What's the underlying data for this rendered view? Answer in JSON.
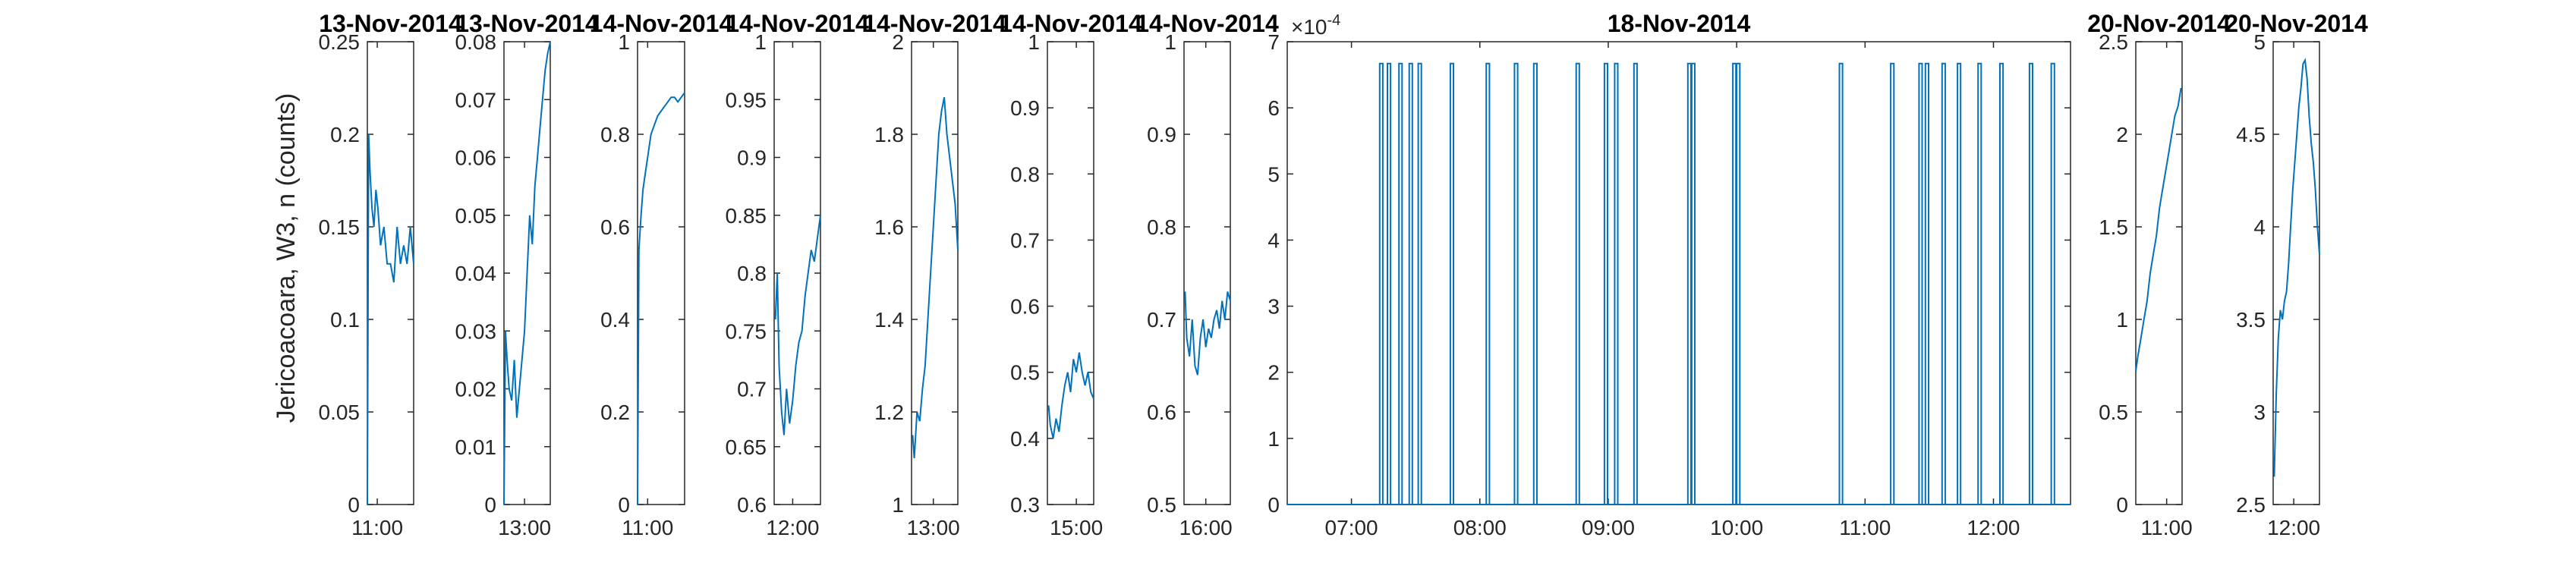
{
  "figure": {
    "ylabel": "Jericoacoara, W3, n (counts)",
    "line_color": "#0072BD",
    "axis_color": "#262626"
  },
  "chart_data": [
    {
      "type": "line",
      "title": "13-Nov-2014",
      "ylim": [
        0,
        0.25
      ],
      "yticks": [
        "0",
        "0.05",
        "0.1",
        "0.15",
        "0.2",
        "0.25"
      ],
      "xticks": [
        "11:00"
      ],
      "xlim_hours": [
        10.85,
        11.55
      ],
      "series": [
        {
          "x": [
            10.85,
            10.87,
            10.89,
            10.92,
            10.95,
            10.98,
            11.01,
            11.05,
            11.1,
            11.15,
            11.2,
            11.25,
            11.3,
            11.35,
            11.4,
            11.45,
            11.5,
            11.55
          ],
          "y": [
            0.0,
            0.2,
            0.18,
            0.16,
            0.15,
            0.17,
            0.16,
            0.14,
            0.15,
            0.13,
            0.13,
            0.12,
            0.15,
            0.13,
            0.14,
            0.13,
            0.15,
            0.13
          ]
        }
      ]
    },
    {
      "type": "line",
      "title": "13-Nov-2014",
      "ylim": [
        0,
        0.08
      ],
      "yticks": [
        "0",
        "0.01",
        "0.02",
        "0.03",
        "0.04",
        "0.05",
        "0.06",
        "0.07",
        "0.08"
      ],
      "xticks": [
        "13:00"
      ],
      "xlim_hours": [
        12.6,
        13.5
      ],
      "series": [
        {
          "x": [
            12.6,
            12.63,
            12.66,
            12.7,
            12.75,
            12.8,
            12.85,
            12.9,
            12.95,
            13.0,
            13.05,
            13.1,
            13.15,
            13.2,
            13.25,
            13.3,
            13.35,
            13.4,
            13.45,
            13.5
          ],
          "y": [
            0.0,
            0.03,
            0.025,
            0.02,
            0.018,
            0.025,
            0.015,
            0.02,
            0.025,
            0.03,
            0.04,
            0.05,
            0.045,
            0.055,
            0.06,
            0.065,
            0.07,
            0.075,
            0.078,
            0.08
          ]
        }
      ]
    },
    {
      "type": "line",
      "title": "14-Nov-2014",
      "ylim": [
        0,
        1
      ],
      "yticks": [
        "0",
        "0.2",
        "0.4",
        "0.6",
        "0.8",
        "1"
      ],
      "xticks": [
        "11:00"
      ],
      "xlim_hours": [
        10.85,
        11.55
      ],
      "series": [
        {
          "x": [
            10.85,
            10.87,
            10.9,
            10.93,
            10.97,
            11.0,
            11.05,
            11.1,
            11.15,
            11.2,
            11.25,
            11.3,
            11.35,
            11.4,
            11.45,
            11.5,
            11.55
          ],
          "y": [
            0.0,
            0.55,
            0.62,
            0.68,
            0.72,
            0.75,
            0.8,
            0.82,
            0.84,
            0.85,
            0.86,
            0.87,
            0.88,
            0.88,
            0.87,
            0.88,
            0.89
          ]
        }
      ]
    },
    {
      "type": "line",
      "title": "14-Nov-2014",
      "ylim": [
        0.6,
        1
      ],
      "yticks": [
        "0.6",
        "0.65",
        "0.7",
        "0.75",
        "0.8",
        "0.85",
        "0.9",
        "0.95",
        "1"
      ],
      "xticks": [
        "12:00"
      ],
      "xlim_hours": [
        11.7,
        12.45
      ],
      "series": [
        {
          "x": [
            11.72,
            11.75,
            11.78,
            11.82,
            11.86,
            11.9,
            11.95,
            12.0,
            12.05,
            12.1,
            12.15,
            12.2,
            12.25,
            12.3,
            12.35,
            12.4,
            12.45
          ],
          "y": [
            0.76,
            0.8,
            0.72,
            0.68,
            0.66,
            0.7,
            0.67,
            0.69,
            0.72,
            0.74,
            0.75,
            0.78,
            0.8,
            0.82,
            0.81,
            0.83,
            0.85
          ]
        }
      ]
    },
    {
      "type": "line",
      "title": "14-Nov-2014",
      "ylim": [
        1,
        2
      ],
      "yticks": [
        "1",
        "1.2",
        "1.4",
        "1.6",
        "1.8",
        "2"
      ],
      "xticks": [
        "13:00"
      ],
      "xlim_hours": [
        12.6,
        13.45
      ],
      "series": [
        {
          "x": [
            12.62,
            12.65,
            12.7,
            12.75,
            12.8,
            12.85,
            12.9,
            12.95,
            13.0,
            13.05,
            13.1,
            13.15,
            13.2,
            13.25,
            13.3,
            13.35,
            13.4,
            13.45
          ],
          "y": [
            1.15,
            1.1,
            1.2,
            1.18,
            1.25,
            1.3,
            1.4,
            1.5,
            1.6,
            1.7,
            1.8,
            1.85,
            1.88,
            1.8,
            1.75,
            1.7,
            1.65,
            1.55
          ]
        }
      ]
    },
    {
      "type": "line",
      "title": "14-Nov-2014",
      "ylim": [
        0.3,
        1
      ],
      "yticks": [
        "0.3",
        "0.4",
        "0.5",
        "0.6",
        "0.7",
        "0.8",
        "0.9",
        "1"
      ],
      "xticks": [
        "15:00"
      ],
      "xlim_hours": [
        14.5,
        15.3
      ],
      "series": [
        {
          "x": [
            14.52,
            14.55,
            14.6,
            14.65,
            14.7,
            14.75,
            14.8,
            14.85,
            14.9,
            14.95,
            15.0,
            15.05,
            15.1,
            15.15,
            15.2,
            15.25,
            15.3
          ],
          "y": [
            0.45,
            0.42,
            0.4,
            0.43,
            0.41,
            0.45,
            0.48,
            0.5,
            0.47,
            0.52,
            0.5,
            0.53,
            0.5,
            0.48,
            0.5,
            0.47,
            0.46
          ]
        }
      ]
    },
    {
      "type": "line",
      "title": "14-Nov-2014",
      "ylim": [
        0.5,
        1
      ],
      "yticks": [
        "0.5",
        "0.6",
        "0.7",
        "0.8",
        "0.9",
        "1"
      ],
      "xticks": [
        "16:00"
      ],
      "xlim_hours": [
        15.6,
        16.45
      ],
      "series": [
        {
          "x": [
            15.62,
            15.65,
            15.7,
            15.75,
            15.8,
            15.85,
            15.9,
            15.95,
            16.0,
            16.05,
            16.1,
            16.15,
            16.2,
            16.25,
            16.3,
            16.35,
            16.4,
            16.45
          ],
          "y": [
            0.73,
            0.68,
            0.66,
            0.7,
            0.65,
            0.64,
            0.68,
            0.7,
            0.67,
            0.69,
            0.68,
            0.7,
            0.71,
            0.69,
            0.72,
            0.7,
            0.73,
            0.72
          ]
        }
      ]
    },
    {
      "type": "line",
      "title": "18-Nov-2014",
      "ylim": [
        0,
        7
      ],
      "ylabel_multiplier": "×10",
      "ylabel_exponent": "-4",
      "yticks": [
        "0",
        "1",
        "2",
        "3",
        "4",
        "5",
        "6",
        "7"
      ],
      "xticks": [
        "07:00",
        "08:00",
        "09:00",
        "10:00",
        "11:00",
        "12:00"
      ],
      "xlim_hours": [
        6.5,
        12.6
      ],
      "spike_height": 6.67,
      "spike_times": [
        7.22,
        7.28,
        7.37,
        7.45,
        7.52,
        7.77,
        8.05,
        8.27,
        8.42,
        8.75,
        8.97,
        9.05,
        9.2,
        9.62,
        9.65,
        9.97,
        10.0,
        10.8,
        11.2,
        11.42,
        11.47,
        11.6,
        11.72,
        11.88,
        12.05,
        12.28,
        12.45
      ]
    },
    {
      "type": "line",
      "title": "20-Nov-2014",
      "ylim": [
        0,
        2.5
      ],
      "yticks": [
        "0",
        "0.5",
        "1",
        "1.5",
        "2",
        "2.5"
      ],
      "xticks": [
        "11:00"
      ],
      "xlim_hours": [
        10.7,
        11.15
      ],
      "series": [
        {
          "x": [
            10.7,
            10.72,
            10.75,
            10.78,
            10.81,
            10.84,
            10.87,
            10.9,
            10.93,
            10.96,
            10.99,
            11.02,
            11.05,
            11.08,
            11.11,
            11.14
          ],
          "y": [
            0.72,
            0.8,
            0.9,
            1.0,
            1.1,
            1.25,
            1.35,
            1.45,
            1.6,
            1.7,
            1.8,
            1.9,
            2.0,
            2.1,
            2.15,
            2.25
          ]
        }
      ]
    },
    {
      "type": "line",
      "title": "20-Nov-2014",
      "ylim": [
        2.5,
        5
      ],
      "yticks": [
        "2.5",
        "3",
        "3.5",
        "4",
        "4.5",
        "5"
      ],
      "xticks": [
        "12:00"
      ],
      "xlim_hours": [
        11.8,
        12.25
      ],
      "series": [
        {
          "x": [
            11.81,
            11.83,
            11.85,
            11.87,
            11.89,
            11.91,
            11.93,
            11.95,
            11.97,
            11.99,
            12.01,
            12.03,
            12.05,
            12.07,
            12.09,
            12.11,
            12.13,
            12.15,
            12.17,
            12.19,
            12.21,
            12.23,
            12.25
          ],
          "y": [
            2.65,
            3.1,
            3.4,
            3.55,
            3.5,
            3.6,
            3.65,
            3.8,
            4.0,
            4.2,
            4.35,
            4.5,
            4.65,
            4.75,
            4.88,
            4.9,
            4.8,
            4.6,
            4.45,
            4.35,
            4.2,
            4.0,
            3.85
          ]
        }
      ]
    }
  ]
}
